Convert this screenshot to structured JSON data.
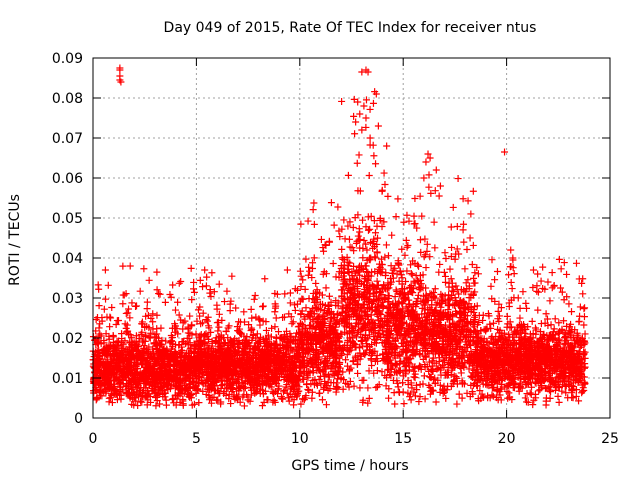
{
  "chart_data": {
    "type": "scatter",
    "title": "Day 049 of 2015, Rate Of TEC Index for receiver ntus",
    "xlabel": "GPS time / hours",
    "ylabel": "ROTI / TECUs",
    "xlim": [
      0,
      25
    ],
    "ylim": [
      0,
      0.09
    ],
    "xticks": [
      0,
      5,
      10,
      15,
      20,
      25
    ],
    "xtick_labels": [
      "0",
      "5",
      "10",
      "15",
      "20",
      "25"
    ],
    "yticks": [
      0,
      0.01,
      0.02,
      0.03,
      0.04,
      0.05,
      0.06,
      0.07,
      0.08,
      0.09
    ],
    "ytick_labels": [
      "0",
      "0.01",
      "0.02",
      "0.03",
      "0.04",
      "0.05",
      "0.06",
      "0.07",
      "0.08",
      "0.09"
    ],
    "grid": true,
    "marker": "+",
    "color": "#ff0000",
    "series": [
      {
        "name": "ntus",
        "envelope": [
          {
            "hours": [
              0,
              5
            ],
            "median": 0.012,
            "spread": 0.006,
            "max": 0.038
          },
          {
            "hours": [
              5,
              10
            ],
            "median": 0.013,
            "spread": 0.006,
            "max": 0.037
          },
          {
            "hours": [
              10,
              12
            ],
            "median": 0.018,
            "spread": 0.009,
            "max": 0.055
          },
          {
            "hours": [
              12,
              14
            ],
            "median": 0.027,
            "spread": 0.013,
            "max": 0.087
          },
          {
            "hours": [
              14,
              16
            ],
            "median": 0.022,
            "spread": 0.011,
            "max": 0.066
          },
          {
            "hours": [
              16,
              18.5
            ],
            "median": 0.02,
            "spread": 0.01,
            "max": 0.066
          },
          {
            "hours": [
              18.5,
              23.8
            ],
            "median": 0.014,
            "spread": 0.006,
            "max": 0.041
          }
        ],
        "outliers": [
          {
            "x": 1.3,
            "y": 0.0875
          },
          {
            "x": 1.3,
            "y": 0.087
          },
          {
            "x": 1.3,
            "y": 0.0855
          },
          {
            "x": 1.3,
            "y": 0.0845
          },
          {
            "x": 1.35,
            "y": 0.084
          },
          {
            "x": 13.2,
            "y": 0.087
          },
          {
            "x": 13.3,
            "y": 0.0865
          },
          {
            "x": 13.0,
            "y": 0.0865
          },
          {
            "x": 13.7,
            "y": 0.081
          },
          {
            "x": 12.8,
            "y": 0.079
          },
          {
            "x": 13.1,
            "y": 0.078
          },
          {
            "x": 12.9,
            "y": 0.076
          },
          {
            "x": 13.2,
            "y": 0.075
          },
          {
            "x": 12.7,
            "y": 0.074
          },
          {
            "x": 13.0,
            "y": 0.072
          },
          {
            "x": 13.4,
            "y": 0.07
          },
          {
            "x": 13.8,
            "y": 0.073
          },
          {
            "x": 14.2,
            "y": 0.068
          },
          {
            "x": 16.2,
            "y": 0.066
          },
          {
            "x": 16.3,
            "y": 0.065
          },
          {
            "x": 16.1,
            "y": 0.064
          },
          {
            "x": 19.9,
            "y": 0.0665
          },
          {
            "x": 16.6,
            "y": 0.062
          },
          {
            "x": 16.0,
            "y": 0.06
          },
          {
            "x": 16.8,
            "y": 0.058
          },
          {
            "x": 20.2,
            "y": 0.042
          },
          {
            "x": 20.3,
            "y": 0.04
          },
          {
            "x": 1.8,
            "y": 0.038
          },
          {
            "x": 0.6,
            "y": 0.037
          },
          {
            "x": 5.4,
            "y": 0.037
          },
          {
            "x": 9.4,
            "y": 0.037
          },
          {
            "x": 21.3,
            "y": 0.037
          },
          {
            "x": 21.5,
            "y": 0.036
          },
          {
            "x": 22.0,
            "y": 0.034
          }
        ]
      }
    ]
  }
}
